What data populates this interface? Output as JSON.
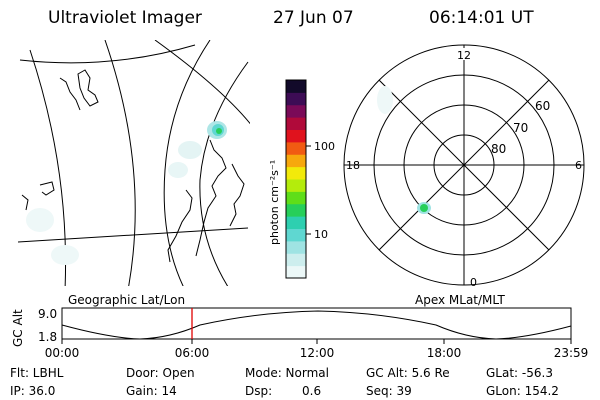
{
  "header": {
    "instrument": "Ultraviolet Imager",
    "date": "27 Jun 07",
    "time": "06:14:01 UT"
  },
  "colorbar": {
    "unit_label": "photon cm⁻²s⁻¹",
    "ticks": [
      "100",
      "10"
    ],
    "colors": [
      "#ecf8f8",
      "#cdeeee",
      "#9fe3e3",
      "#5fd7d1",
      "#2ecfb0",
      "#27cf5a",
      "#5fde19",
      "#b4ec0c",
      "#f2ea0a",
      "#f7a80d",
      "#f15b12",
      "#e0121d",
      "#b00a3a",
      "#7a0a58",
      "#3d0c55",
      "#120a2a"
    ]
  },
  "geographic_panel": {
    "label": "Geographic Lat/Lon"
  },
  "polar_panel": {
    "label": "Apex MLat/MLT",
    "mlt_labels": {
      "top": "12",
      "left": "18",
      "right": "6",
      "bottom": "0"
    },
    "lat_labels": [
      "60",
      "70",
      "80"
    ]
  },
  "altitude_strip": {
    "axis_label": "GC Alt",
    "ymax_label": "9.0",
    "ymin_label": "1.8",
    "x_ticks": [
      "00:00",
      "06:00",
      "12:00",
      "18:00",
      "23:59"
    ],
    "current_time_color": "#e00000"
  },
  "info": {
    "flt": "Flt: LBHL",
    "ip": "IP: 36.0",
    "door": "Door: Open",
    "gain": "Gain: 14",
    "mode": "Mode: Normal",
    "dsp_label": "Dsp:",
    "dsp_value": "0.6",
    "gc_alt": "GC Alt: 5.6 Re",
    "seq": "Seq: 39",
    "glat": "GLat: -56.3",
    "glon": "GLon: 154.2"
  }
}
